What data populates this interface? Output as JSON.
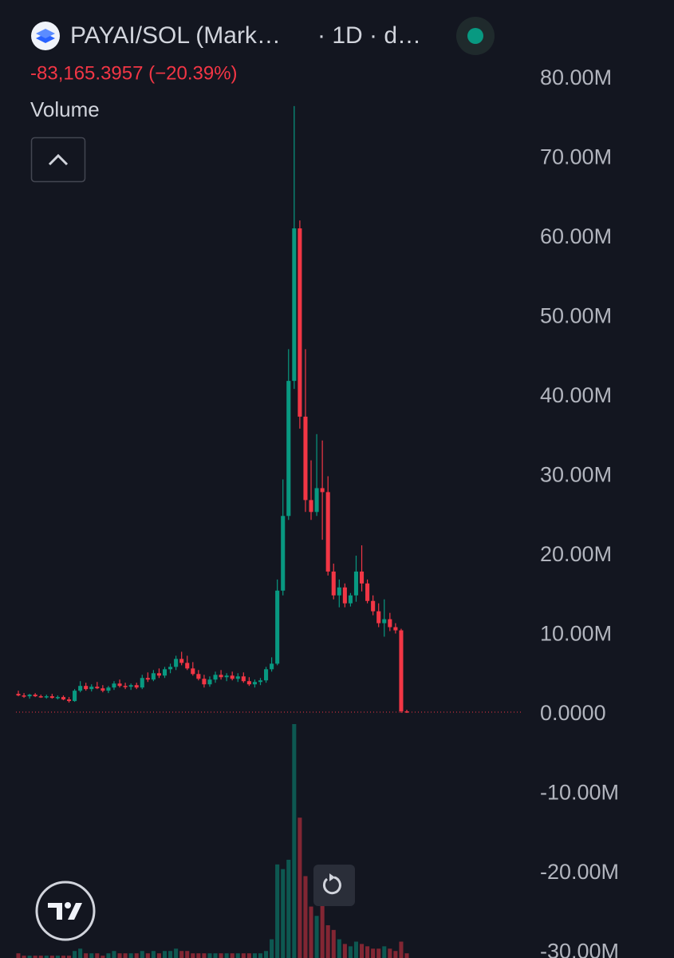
{
  "chart_data": {
    "type": "candlestick",
    "title": "PAYAI/SOL (Mark…",
    "subtitle": "· 1D · d…",
    "annotation": "-83,165.3957 (−20.39%)",
    "up_color": "#089981",
    "down_color": "#f23645",
    "ylim": [
      -30.65,
      89.95
    ],
    "yticks": [
      {
        "value": 80,
        "label": "80.00M"
      },
      {
        "value": 70,
        "label": "70.00M"
      },
      {
        "value": 60,
        "label": "60.00M"
      },
      {
        "value": 50,
        "label": "50.00M"
      },
      {
        "value": 40,
        "label": "40.00M"
      },
      {
        "value": 30,
        "label": "30.00M"
      },
      {
        "value": 20,
        "label": "20.00M"
      },
      {
        "value": 10,
        "label": "10.00M"
      },
      {
        "value": 0,
        "label": "0.0000"
      },
      {
        "value": -10,
        "label": "-10.00M"
      },
      {
        "value": -20,
        "label": "-20.00M"
      },
      {
        "value": -30,
        "label": "-30.00M"
      }
    ],
    "open": [
      2.6,
      2.4,
      2.3,
      2.5,
      2.3,
      2.2,
      2.3,
      2.1,
      2.2,
      1.9,
      1.7,
      3.0,
      3.6,
      3.2,
      3.5,
      3.3,
      3.0,
      3.4,
      3.9,
      3.6,
      3.5,
      3.7,
      3.4,
      4.6,
      4.4,
      5.2,
      4.9,
      5.7,
      6.0,
      7.0,
      6.5,
      5.8,
      5.1,
      4.5,
      3.8,
      4.4,
      5.0,
      4.7,
      4.9,
      4.5,
      4.8,
      4.2,
      3.8,
      4.1,
      4.3,
      5.7,
      6.4,
      15.6,
      25,
      42,
      61.2,
      37.5,
      27,
      25.5,
      28.5,
      28,
      18,
      15,
      16,
      14,
      15,
      18,
      16.5,
      14.3,
      13,
      11.5,
      12,
      11,
      10.6,
      0.4
    ],
    "high": [
      3.0,
      2.7,
      2.6,
      2.7,
      2.5,
      2.5,
      2.6,
      2.4,
      2.4,
      2.2,
      3.2,
      4.2,
      4.0,
      3.8,
      4.1,
      3.7,
      3.6,
      4.2,
      4.4,
      4.0,
      3.9,
      4.0,
      5.0,
      5.3,
      5.6,
      5.8,
      6.0,
      6.4,
      7.4,
      7.9,
      7.4,
      6.6,
      5.6,
      5.0,
      4.8,
      5.4,
      5.6,
      5.2,
      5.4,
      5.2,
      5.3,
      4.7,
      4.4,
      4.6,
      6.0,
      7.2,
      17,
      29.6,
      46,
      76.6,
      62.2,
      46,
      32,
      35.3,
      34.5,
      30,
      19,
      17,
      16.5,
      15.3,
      20,
      21.3,
      17,
      15,
      14,
      14.5,
      12.8,
      11.5,
      10.8,
      0.6
    ],
    "low": [
      2.3,
      2.1,
      2.0,
      2.2,
      2.1,
      2.0,
      2.0,
      1.9,
      1.8,
      1.5,
      1.6,
      2.8,
      3.0,
      2.9,
      3.2,
      2.8,
      2.7,
      3.1,
      3.4,
      3.2,
      3.1,
      3.2,
      3.2,
      4.1,
      4.2,
      4.6,
      4.6,
      5.2,
      5.6,
      6.2,
      5.6,
      4.9,
      4.3,
      3.4,
      3.5,
      4.0,
      4.4,
      4.2,
      4.3,
      4.1,
      4.0,
      3.6,
      3.4,
      3.7,
      4.0,
      5.4,
      6.2,
      15.0,
      24.5,
      41,
      36,
      25.5,
      24.5,
      25,
      22,
      17.5,
      14.5,
      13.5,
      13.5,
      13.6,
      14.2,
      15.5,
      14,
      12.5,
      11,
      9.8,
      10.5,
      10.2,
      0.2,
      0.2
    ],
    "close": [
      2.4,
      2.3,
      2.5,
      2.3,
      2.2,
      2.3,
      2.1,
      2.2,
      1.9,
      1.7,
      3.0,
      3.6,
      3.2,
      3.5,
      3.3,
      3.0,
      3.4,
      3.9,
      3.6,
      3.5,
      3.7,
      3.4,
      4.6,
      4.4,
      5.2,
      4.9,
      5.7,
      6.0,
      7.0,
      6.5,
      5.8,
      5.1,
      4.5,
      3.8,
      4.4,
      5.0,
      4.7,
      4.9,
      4.5,
      4.8,
      4.2,
      3.8,
      4.1,
      4.3,
      5.7,
      6.4,
      15.6,
      25.0,
      42.0,
      61.2,
      37.5,
      27,
      25.5,
      28.5,
      28,
      18,
      15,
      16,
      14,
      15,
      18,
      16.5,
      14.3,
      13,
      11.5,
      12,
      11,
      10.6,
      0.4,
      0.3
    ],
    "volume": {
      "name": "Volume",
      "values": [
        2,
        1,
        1,
        1,
        1,
        1,
        1,
        1,
        1,
        1,
        3,
        4,
        2,
        2,
        2,
        1,
        2,
        3,
        2,
        2,
        2,
        2,
        3,
        2,
        3,
        2,
        3,
        3,
        4,
        3,
        3,
        2,
        2,
        2,
        2,
        2,
        2,
        2,
        2,
        2,
        2,
        2,
        2,
        2,
        3,
        8,
        40,
        38,
        42,
        100,
        60,
        35,
        22,
        18,
        24,
        14,
        12,
        8,
        6,
        5,
        7,
        6,
        5,
        4,
        4,
        5,
        4,
        3,
        7,
        2
      ]
    }
  }
}
